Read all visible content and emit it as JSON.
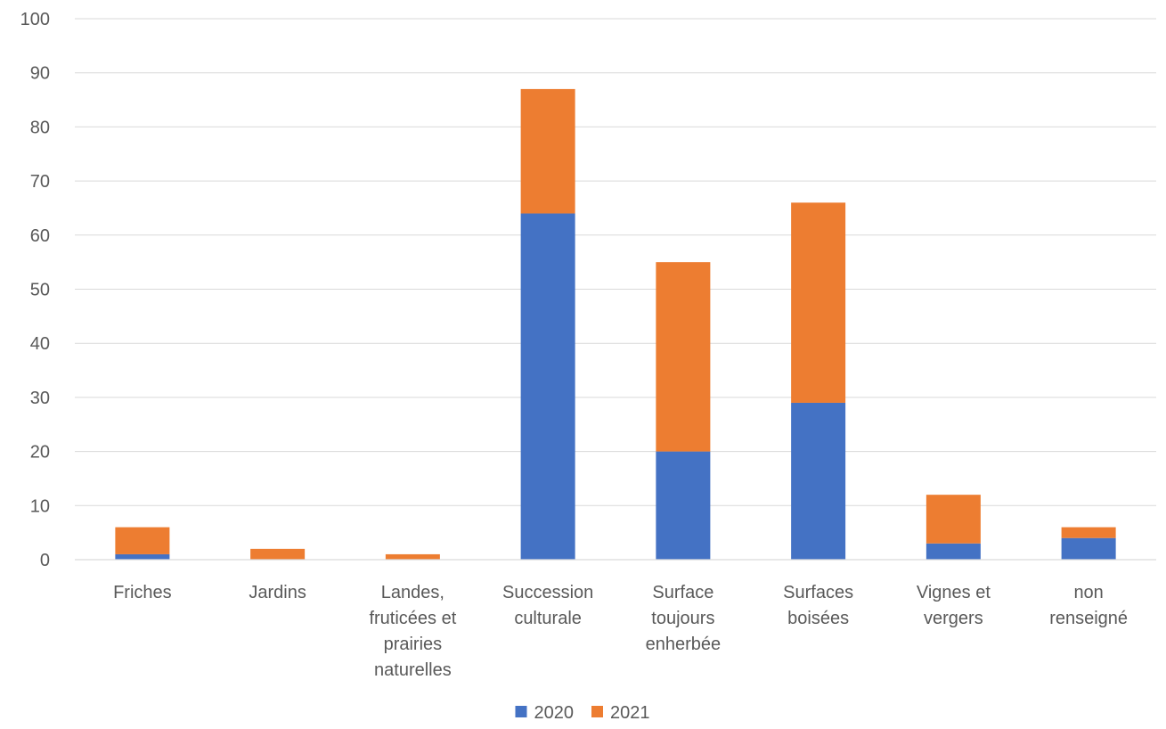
{
  "chart_data": {
    "type": "bar",
    "stacked": true,
    "title": "",
    "xlabel": "",
    "ylabel": "",
    "ylim": [
      0,
      100
    ],
    "yticks": [
      0,
      10,
      20,
      30,
      40,
      50,
      60,
      70,
      80,
      90,
      100
    ],
    "grid": true,
    "legend_position": "bottom",
    "categories": [
      "Friches",
      "Jardins",
      "Landes, fruticées et prairies naturelles",
      "Succession culturale",
      "Surface toujours enherbée",
      "Surfaces boisées",
      "Vignes et vergers",
      "non renseigné"
    ],
    "category_lines": [
      [
        "Friches"
      ],
      [
        "Jardins"
      ],
      [
        "Landes,",
        "fruticées et",
        "prairies",
        "naturelles"
      ],
      [
        "Succession",
        "culturale"
      ],
      [
        "Surface",
        "toujours",
        "enherbée"
      ],
      [
        "Surfaces",
        "boisées"
      ],
      [
        "Vignes et",
        "vergers"
      ],
      [
        "non",
        "renseigné"
      ]
    ],
    "series": [
      {
        "name": "2020",
        "color": "#4472c4",
        "values": [
          1,
          0,
          0,
          64,
          20,
          29,
          3,
          4
        ]
      },
      {
        "name": "2021",
        "color": "#ed7d31",
        "values": [
          5,
          2,
          1,
          23,
          35,
          37,
          9,
          2
        ]
      }
    ]
  }
}
